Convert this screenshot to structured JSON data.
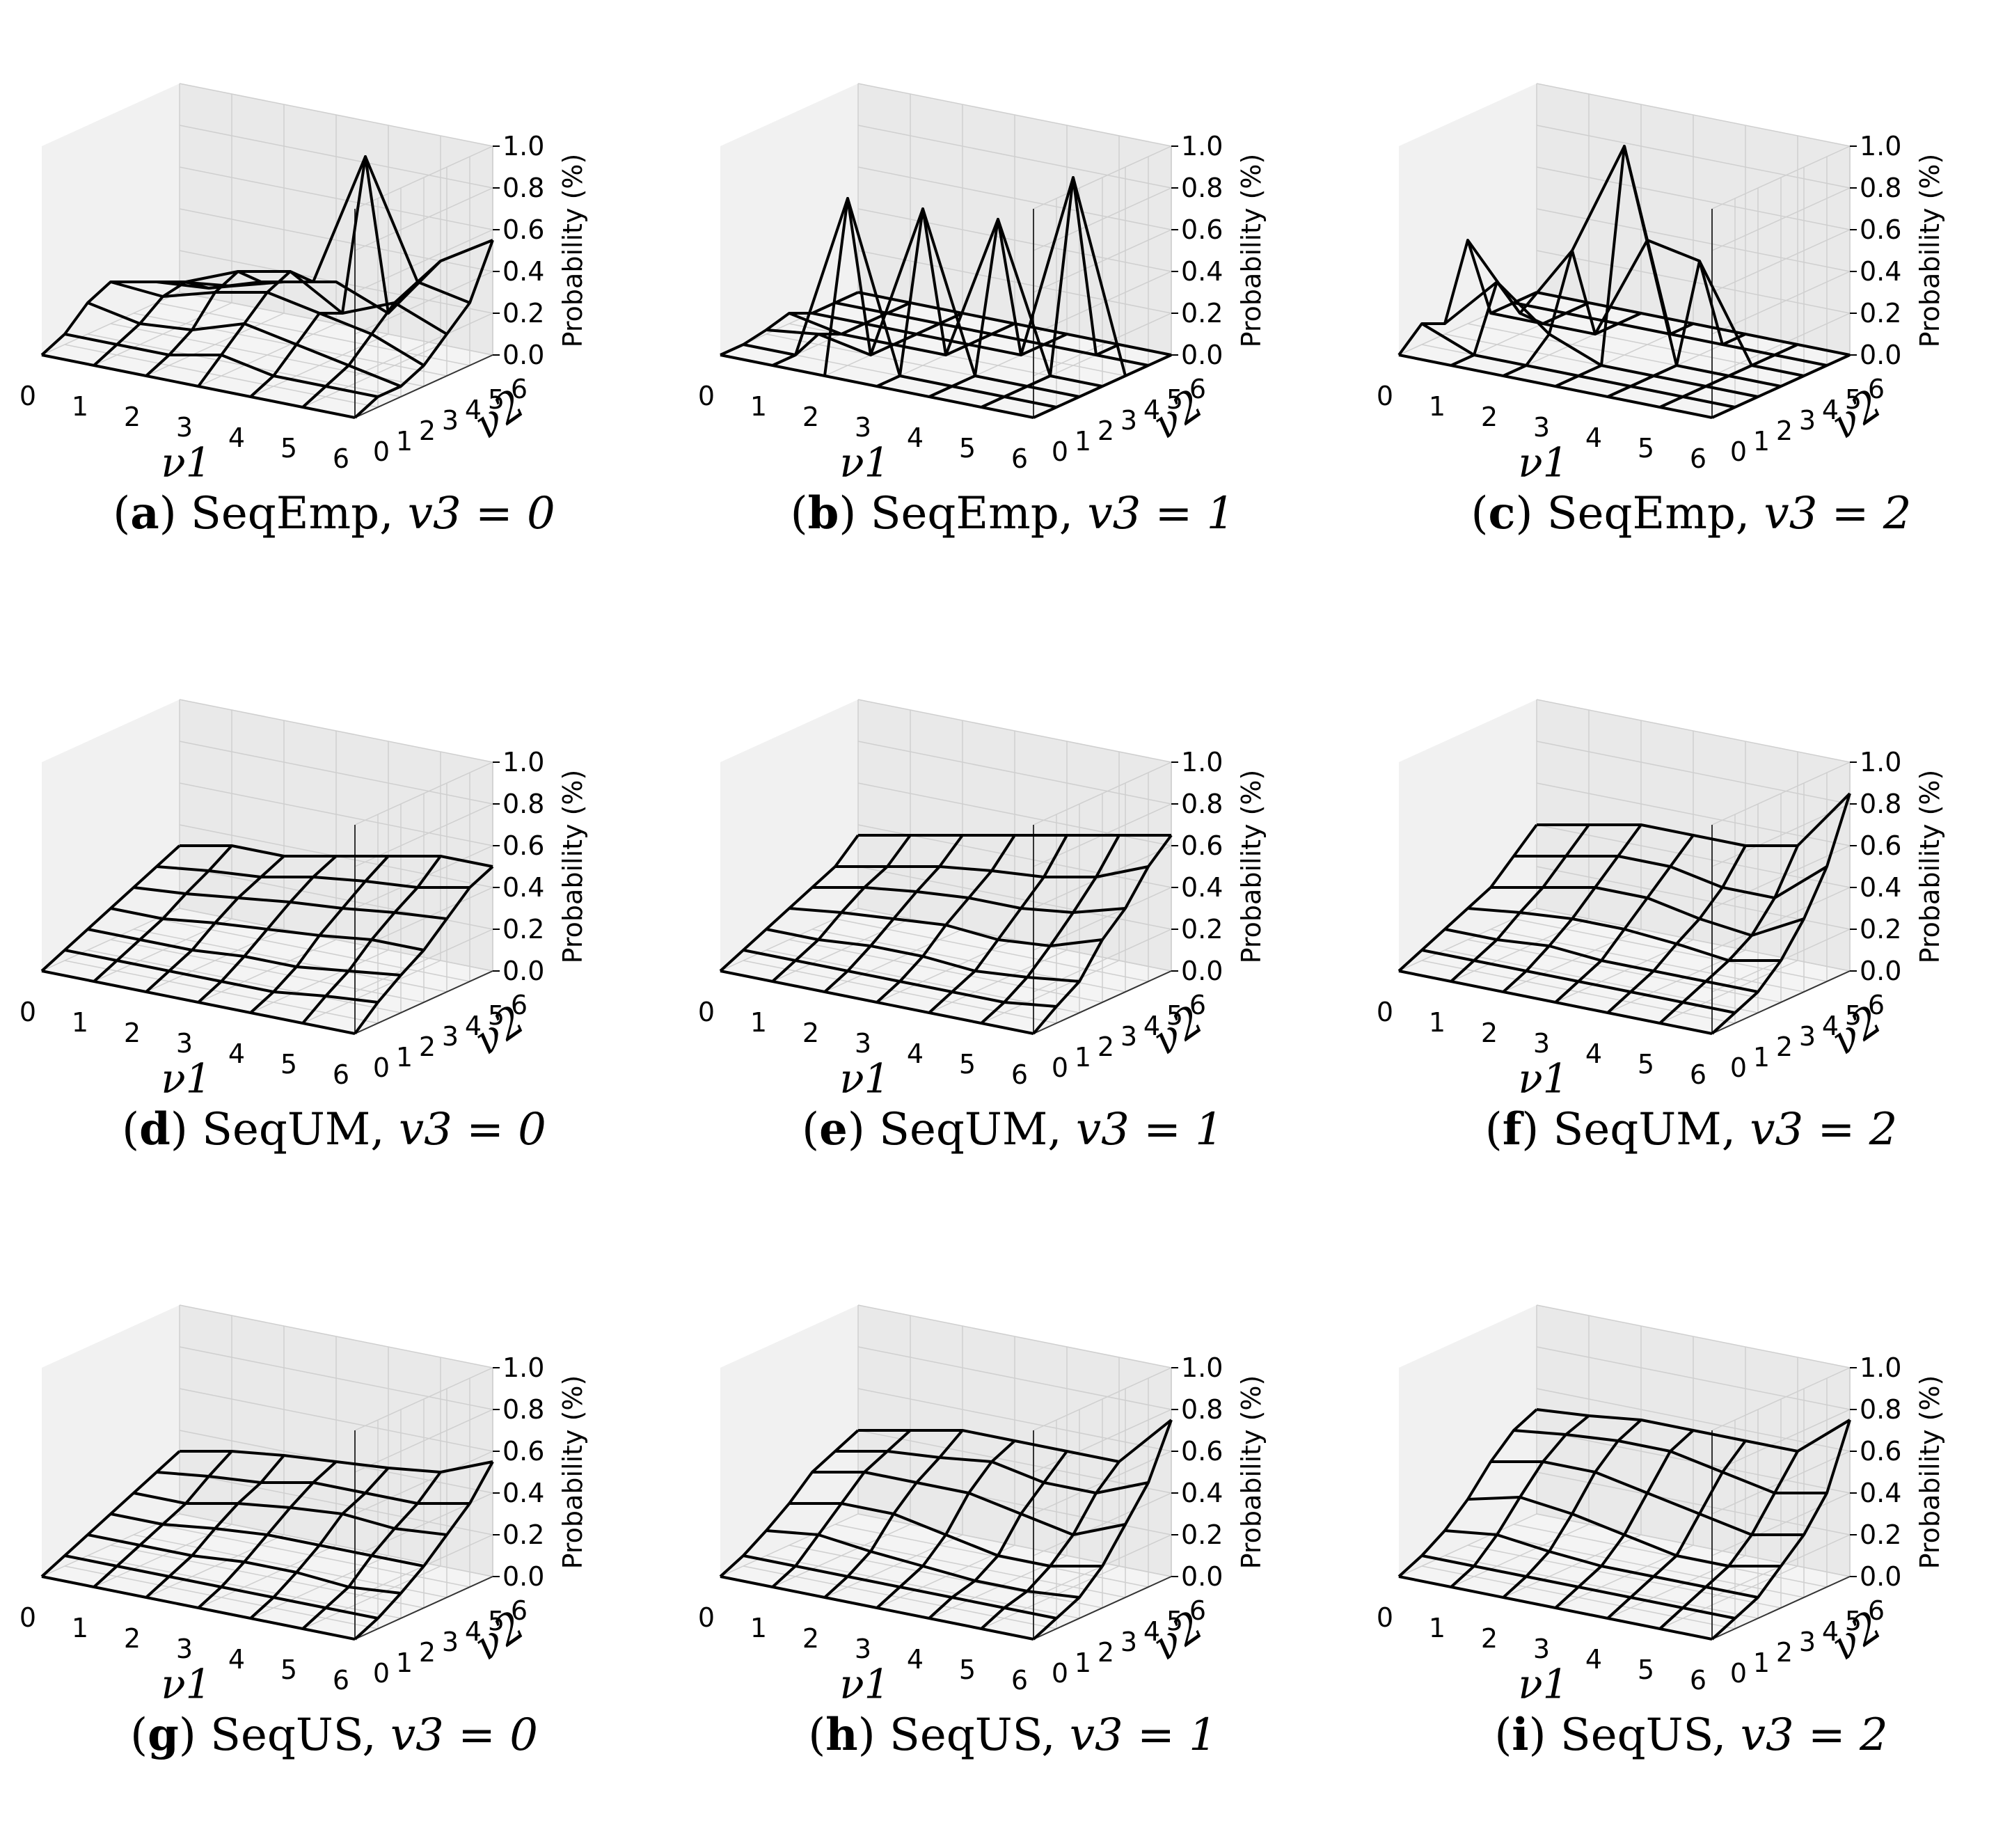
{
  "chart_data": [
    {
      "type": "wireframe3d",
      "label": "a",
      "method": "SeqEmp",
      "caption_cond": "v3 = 0",
      "v3": 0,
      "xlabel": "ν1",
      "ylabel": "ν2",
      "zlabel": "Probability (%)",
      "x_ticks": [
        "0",
        "1",
        "2",
        "3",
        "4",
        "5",
        "6"
      ],
      "y_ticks": [
        "0",
        "1",
        "2",
        "3",
        "4",
        "5",
        "6"
      ],
      "z_ticks": [
        "0.0",
        "0.2",
        "0.4",
        "0.6",
        "0.8",
        "1.0"
      ],
      "zlim": [
        0,
        1.0
      ],
      "values": [
        [
          0.0,
          0.05,
          0.15,
          0.2,
          0.15,
          0.1,
          0.05
        ],
        [
          0.0,
          0.05,
          0.1,
          0.18,
          0.2,
          0.12,
          0.08
        ],
        [
          0.0,
          0.05,
          0.12,
          0.25,
          0.3,
          0.2,
          0.15
        ],
        [
          0.0,
          0.1,
          0.2,
          0.3,
          0.35,
          0.25,
          0.2
        ],
        [
          0.0,
          0.05,
          0.15,
          0.25,
          0.2,
          0.9,
          0.1
        ],
        [
          0.0,
          0.05,
          0.1,
          0.2,
          0.3,
          0.35,
          0.4
        ],
        [
          0.0,
          0.05,
          0.05,
          0.1,
          0.2,
          0.3,
          0.55
        ]
      ]
    },
    {
      "type": "wireframe3d",
      "label": "b",
      "method": "SeqEmp",
      "caption_cond": "v3 = 1",
      "v3": 1,
      "xlabel": "ν1",
      "ylabel": "ν2",
      "zlabel": "Probability (%)",
      "x_ticks": [
        "0",
        "1",
        "2",
        "3",
        "4",
        "5",
        "6"
      ],
      "y_ticks": [
        "0",
        "1",
        "2",
        "3",
        "4",
        "5",
        "6"
      ],
      "z_ticks": [
        "0.0",
        "0.2",
        "0.4",
        "0.6",
        "0.8",
        "1.0"
      ],
      "zlim": [
        0,
        1.0
      ],
      "values": [
        [
          0.0,
          0.0,
          0.02,
          0.05,
          0.0,
          0.0,
          0.0
        ],
        [
          0.0,
          0.0,
          0.05,
          0.0,
          0.0,
          0.0,
          0.0
        ],
        [
          0.0,
          0.8,
          0.0,
          0.0,
          0.0,
          0.0,
          0.0
        ],
        [
          0.0,
          0.0,
          0.75,
          0.0,
          0.0,
          0.0,
          0.0
        ],
        [
          0.0,
          0.0,
          0.0,
          0.7,
          0.0,
          0.0,
          0.0
        ],
        [
          0.0,
          0.0,
          0.0,
          0.0,
          0.9,
          0.0,
          0.0
        ],
        [
          0.0,
          0.0,
          0.0,
          0.0,
          0.0,
          0.0,
          0.0
        ]
      ]
    },
    {
      "type": "wireframe3d",
      "label": "c",
      "method": "SeqEmp",
      "caption_cond": "v3 = 2",
      "v3": 2,
      "xlabel": "ν1",
      "ylabel": "ν2",
      "zlabel": "Probability (%)",
      "x_ticks": [
        "0",
        "1",
        "2",
        "3",
        "4",
        "5",
        "6"
      ],
      "y_ticks": [
        "0",
        "1",
        "2",
        "3",
        "4",
        "5",
        "6"
      ],
      "z_ticks": [
        "0.0",
        "0.2",
        "0.4",
        "0.6",
        "0.8",
        "1.0"
      ],
      "zlim": [
        0,
        1.0
      ],
      "values": [
        [
          0.0,
          0.1,
          0.05,
          0.4,
          0.0,
          0.0,
          0.0
        ],
        [
          0.0,
          0.0,
          0.3,
          0.1,
          0.0,
          0.0,
          0.0
        ],
        [
          0.0,
          0.0,
          0.1,
          0.45,
          0.0,
          0.0,
          0.0
        ],
        [
          0.0,
          0.0,
          0.0,
          1.0,
          0.5,
          0.0,
          0.0
        ],
        [
          0.0,
          0.0,
          0.0,
          0.0,
          0.45,
          0.0,
          0.0
        ],
        [
          0.0,
          0.0,
          0.0,
          0.0,
          0.0,
          0.0,
          0.0
        ],
        [
          0.0,
          0.0,
          0.0,
          0.0,
          0.0,
          0.0,
          0.0
        ]
      ]
    },
    {
      "type": "wireframe3d",
      "label": "d",
      "method": "SeqUM",
      "caption_cond": "v3 = 0",
      "v3": 0,
      "xlabel": "ν1",
      "ylabel": "ν2",
      "zlabel": "Probability (%)",
      "x_ticks": [
        "0",
        "1",
        "2",
        "3",
        "4",
        "5",
        "6"
      ],
      "y_ticks": [
        "0",
        "1",
        "2",
        "3",
        "4",
        "5",
        "6"
      ],
      "z_ticks": [
        "0.0",
        "0.2",
        "0.4",
        "0.6",
        "0.8",
        "1.0"
      ],
      "zlim": [
        0,
        1.0
      ],
      "values": [
        [
          0.0,
          0.05,
          0.1,
          0.15,
          0.2,
          0.25,
          0.3
        ],
        [
          0.0,
          0.05,
          0.1,
          0.15,
          0.22,
          0.28,
          0.35
        ],
        [
          0.0,
          0.05,
          0.1,
          0.18,
          0.25,
          0.3,
          0.35
        ],
        [
          0.0,
          0.05,
          0.12,
          0.2,
          0.28,
          0.35,
          0.4
        ],
        [
          0.0,
          0.05,
          0.12,
          0.22,
          0.3,
          0.38,
          0.45
        ],
        [
          0.0,
          0.08,
          0.15,
          0.25,
          0.33,
          0.4,
          0.5
        ],
        [
          0.0,
          0.1,
          0.18,
          0.25,
          0.35,
          0.45,
          0.5
        ]
      ]
    },
    {
      "type": "wireframe3d",
      "label": "e",
      "method": "SeqUM",
      "caption_cond": "v3 = 1",
      "v3": 1,
      "xlabel": "ν1",
      "ylabel": "ν2",
      "zlabel": "Probability (%)",
      "x_ticks": [
        "0",
        "1",
        "2",
        "3",
        "4",
        "5",
        "6"
      ],
      "y_ticks": [
        "0",
        "1",
        "2",
        "3",
        "4",
        "5",
        "6"
      ],
      "z_ticks": [
        "0.0",
        "0.2",
        "0.4",
        "0.6",
        "0.8",
        "1.0"
      ],
      "zlim": [
        0,
        1.0
      ],
      "values": [
        [
          0.0,
          0.05,
          0.1,
          0.15,
          0.2,
          0.25,
          0.35
        ],
        [
          0.0,
          0.05,
          0.1,
          0.18,
          0.25,
          0.3,
          0.4
        ],
        [
          0.0,
          0.05,
          0.12,
          0.2,
          0.28,
          0.35,
          0.45
        ],
        [
          0.0,
          0.05,
          0.12,
          0.22,
          0.3,
          0.38,
          0.5
        ],
        [
          0.0,
          0.05,
          0.1,
          0.2,
          0.3,
          0.4,
          0.55
        ],
        [
          0.0,
          0.05,
          0.12,
          0.22,
          0.33,
          0.45,
          0.6
        ],
        [
          0.0,
          0.08,
          0.15,
          0.3,
          0.4,
          0.55,
          0.65
        ]
      ]
    },
    {
      "type": "wireframe3d",
      "label": "f",
      "method": "SeqUM",
      "caption_cond": "v3 = 2",
      "v3": 2,
      "xlabel": "ν1",
      "ylabel": "ν2",
      "zlabel": "Probability (%)",
      "x_ticks": [
        "0",
        "1",
        "2",
        "3",
        "4",
        "5",
        "6"
      ],
      "y_ticks": [
        "0",
        "1",
        "2",
        "3",
        "4",
        "5",
        "6"
      ],
      "z_ticks": [
        "0.0",
        "0.2",
        "0.4",
        "0.6",
        "0.8",
        "1.0"
      ],
      "zlim": [
        0,
        1.0
      ],
      "values": [
        [
          0.0,
          0.05,
          0.1,
          0.15,
          0.2,
          0.3,
          0.4
        ],
        [
          0.0,
          0.05,
          0.1,
          0.18,
          0.25,
          0.35,
          0.45
        ],
        [
          0.0,
          0.05,
          0.12,
          0.2,
          0.3,
          0.4,
          0.5
        ],
        [
          0.0,
          0.05,
          0.1,
          0.2,
          0.3,
          0.4,
          0.5
        ],
        [
          0.0,
          0.05,
          0.1,
          0.18,
          0.25,
          0.35,
          0.5
        ],
        [
          0.0,
          0.05,
          0.1,
          0.15,
          0.22,
          0.35,
          0.55
        ],
        [
          0.0,
          0.05,
          0.1,
          0.2,
          0.35,
          0.55,
          0.85
        ]
      ]
    },
    {
      "type": "wireframe3d",
      "label": "g",
      "method": "SeqUS",
      "caption_cond": "v3 = 0",
      "v3": 0,
      "xlabel": "ν1",
      "ylabel": "ν2",
      "zlabel": "Probability (%)",
      "x_ticks": [
        "0",
        "1",
        "2",
        "3",
        "4",
        "5",
        "6"
      ],
      "y_ticks": [
        "0",
        "1",
        "2",
        "3",
        "4",
        "5",
        "6"
      ],
      "z_ticks": [
        "0.0",
        "0.2",
        "0.4",
        "0.6",
        "0.8",
        "1.0"
      ],
      "zlim": [
        0,
        1.0
      ],
      "values": [
        [
          0.0,
          0.05,
          0.1,
          0.15,
          0.2,
          0.25,
          0.3
        ],
        [
          0.0,
          0.05,
          0.1,
          0.15,
          0.2,
          0.28,
          0.35
        ],
        [
          0.0,
          0.05,
          0.1,
          0.18,
          0.25,
          0.3,
          0.38
        ],
        [
          0.0,
          0.05,
          0.12,
          0.2,
          0.28,
          0.35,
          0.4
        ],
        [
          0.0,
          0.05,
          0.12,
          0.2,
          0.3,
          0.35,
          0.42
        ],
        [
          0.0,
          0.05,
          0.1,
          0.2,
          0.28,
          0.35,
          0.45
        ],
        [
          0.0,
          0.05,
          0.12,
          0.2,
          0.3,
          0.4,
          0.55
        ]
      ]
    },
    {
      "type": "wireframe3d",
      "label": "h",
      "method": "SeqUS",
      "caption_cond": "v3 = 1",
      "v3": 1,
      "xlabel": "ν1",
      "ylabel": "ν2",
      "zlabel": "Probability (%)",
      "x_ticks": [
        "0",
        "1",
        "2",
        "3",
        "4",
        "5",
        "6"
      ],
      "y_ticks": [
        "0",
        "1",
        "2",
        "3",
        "4",
        "5",
        "6"
      ],
      "z_ticks": [
        "0.0",
        "0.2",
        "0.4",
        "0.6",
        "0.8",
        "1.0"
      ],
      "zlim": [
        0,
        1.0
      ],
      "values": [
        [
          0.0,
          0.05,
          0.12,
          0.2,
          0.3,
          0.35,
          0.4
        ],
        [
          0.0,
          0.05,
          0.15,
          0.25,
          0.35,
          0.4,
          0.45
        ],
        [
          0.0,
          0.05,
          0.12,
          0.25,
          0.35,
          0.42,
          0.5
        ],
        [
          0.0,
          0.05,
          0.1,
          0.2,
          0.35,
          0.45,
          0.5
        ],
        [
          0.0,
          0.05,
          0.08,
          0.15,
          0.3,
          0.4,
          0.5
        ],
        [
          0.0,
          0.05,
          0.08,
          0.15,
          0.25,
          0.4,
          0.5
        ],
        [
          0.0,
          0.05,
          0.1,
          0.2,
          0.35,
          0.5,
          0.75
        ]
      ]
    },
    {
      "type": "wireframe3d",
      "label": "i",
      "method": "SeqUS",
      "caption_cond": "v3 = 2",
      "v3": 2,
      "xlabel": "ν1",
      "ylabel": "ν2",
      "zlabel": "Probability (%)",
      "x_ticks": [
        "0",
        "1",
        "2",
        "3",
        "4",
        "5",
        "6"
      ],
      "y_ticks": [
        "0",
        "1",
        "2",
        "3",
        "4",
        "5",
        "6"
      ],
      "z_ticks": [
        "0.0",
        "0.2",
        "0.4",
        "0.6",
        "0.8",
        "1.0"
      ],
      "zlim": [
        0,
        1.0
      ],
      "values": [
        [
          0.0,
          0.05,
          0.12,
          0.22,
          0.35,
          0.45,
          0.5
        ],
        [
          0.0,
          0.05,
          0.15,
          0.28,
          0.4,
          0.48,
          0.52
        ],
        [
          0.0,
          0.05,
          0.12,
          0.25,
          0.4,
          0.5,
          0.55
        ],
        [
          0.0,
          0.05,
          0.1,
          0.2,
          0.35,
          0.5,
          0.55
        ],
        [
          0.0,
          0.05,
          0.1,
          0.15,
          0.3,
          0.45,
          0.55
        ],
        [
          0.0,
          0.05,
          0.1,
          0.15,
          0.25,
          0.4,
          0.55
        ],
        [
          0.0,
          0.05,
          0.1,
          0.2,
          0.3,
          0.45,
          0.75
        ]
      ]
    }
  ]
}
